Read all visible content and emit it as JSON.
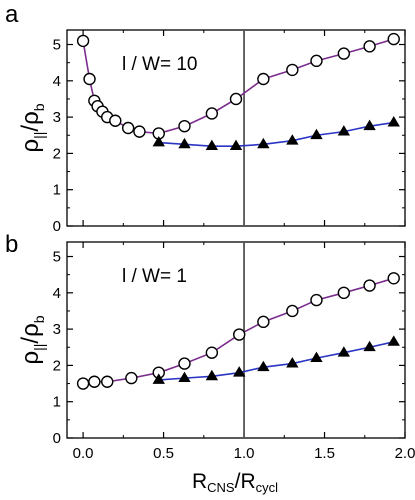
{
  "chart_data": [
    {
      "type": "line",
      "panel_label": "a",
      "annotation": "l / W= 10",
      "ylabel": "ρ||/ρb",
      "ylim": [
        0,
        5.4
      ],
      "xlim": [
        -0.1,
        2.0
      ],
      "yticks": [
        "0",
        "1",
        "2",
        "3",
        "4",
        "5"
      ],
      "xticks": [
        "0.0",
        "0.5",
        "1.0",
        "1.5",
        "2.0"
      ],
      "vline_x": 1.0,
      "series": [
        {
          "marker": "circle-open",
          "color": "#7b2d8e",
          "x": [
            0.0,
            0.04,
            0.07,
            0.09,
            0.12,
            0.15,
            0.2,
            0.28,
            0.35,
            0.47,
            0.63,
            0.8,
            0.95,
            1.12,
            1.3,
            1.45,
            1.62,
            1.78,
            1.93
          ],
          "y": [
            5.1,
            4.05,
            3.45,
            3.3,
            3.15,
            3.0,
            2.9,
            2.7,
            2.6,
            2.55,
            2.75,
            3.1,
            3.5,
            4.05,
            4.3,
            4.55,
            4.75,
            4.95,
            5.15
          ]
        },
        {
          "marker": "triangle-filled",
          "color": "#2a35c4",
          "x": [
            0.47,
            0.63,
            0.8,
            0.95,
            1.12,
            1.3,
            1.45,
            1.62,
            1.78,
            1.93
          ],
          "y": [
            2.3,
            2.25,
            2.2,
            2.2,
            2.25,
            2.35,
            2.5,
            2.6,
            2.75,
            2.85
          ]
        }
      ]
    },
    {
      "type": "line",
      "panel_label": "b",
      "annotation": "l / W= 1",
      "ylabel": "ρ||/ρb",
      "xlabel": "RCNS/Rcycl",
      "ylim": [
        0,
        5.4
      ],
      "xlim": [
        -0.1,
        2.0
      ],
      "yticks": [
        "0",
        "1",
        "2",
        "3",
        "4",
        "5"
      ],
      "xticks": [
        "0.0",
        "0.5",
        "1.0",
        "1.5",
        "2.0"
      ],
      "vline_x": 1.0,
      "series": [
        {
          "marker": "circle-open",
          "color": "#7b2d8e",
          "x": [
            0.0,
            0.07,
            0.15,
            0.3,
            0.47,
            0.63,
            0.8,
            0.97,
            1.12,
            1.3,
            1.45,
            1.62,
            1.78,
            1.93
          ],
          "y": [
            1.5,
            1.55,
            1.55,
            1.65,
            1.8,
            2.05,
            2.35,
            2.85,
            3.2,
            3.5,
            3.8,
            4.0,
            4.2,
            4.4
          ]
        },
        {
          "marker": "triangle-filled",
          "color": "#2a35c4",
          "x": [
            0.47,
            0.63,
            0.8,
            0.97,
            1.12,
            1.3,
            1.45,
            1.62,
            1.78,
            1.93
          ],
          "y": [
            1.6,
            1.65,
            1.7,
            1.8,
            1.95,
            2.05,
            2.2,
            2.35,
            2.5,
            2.65
          ]
        }
      ]
    }
  ]
}
